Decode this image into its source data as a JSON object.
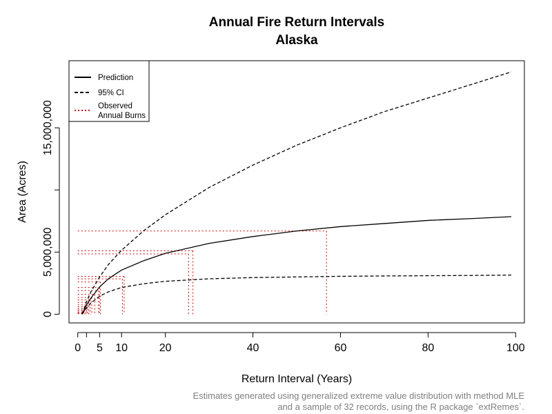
{
  "chart_data": {
    "type": "line",
    "title": "Annual Fire Return Intervals",
    "subtitle": "Alaska",
    "xlabel": "Return Interval (Years)",
    "ylabel": "Area (Acres)",
    "xlim": [
      -2,
      102
    ],
    "ylim": [
      -700000,
      20400000
    ],
    "x_ticks": [
      0,
      2,
      5,
      10,
      20,
      40,
      60,
      80,
      100
    ],
    "x_tick_labels": [
      "0",
      "",
      "5",
      "10",
      "20",
      "40",
      "60",
      "80",
      "100"
    ],
    "y_ticks": [
      0,
      5000000,
      10000000,
      15000000
    ],
    "y_tick_labels": [
      "0",
      "5,000,000",
      "",
      "15,000,000"
    ],
    "grid": false,
    "legend_position": "top-left",
    "series": [
      {
        "name": "Prediction",
        "line_style": "solid",
        "color": "#000000",
        "x": [
          1,
          2,
          3,
          5,
          7,
          10,
          15,
          20,
          30,
          40,
          50,
          60,
          70,
          80,
          90,
          99
        ],
        "y": [
          0,
          750000,
          1300000,
          2200000,
          2850000,
          3550000,
          4300000,
          4900000,
          5700000,
          6250000,
          6700000,
          7050000,
          7300000,
          7550000,
          7700000,
          7850000
        ]
      },
      {
        "name": "95% CI",
        "line_style": "dashed",
        "color": "#000000",
        "x": [
          1,
          2,
          3,
          5,
          7,
          10,
          15,
          20,
          30,
          40,
          50,
          60,
          70,
          80,
          90,
          99
        ],
        "y": [
          0,
          1000000,
          1800000,
          3000000,
          4000000,
          5150000,
          6700000,
          8000000,
          10200000,
          12000000,
          13600000,
          15000000,
          16300000,
          17400000,
          18500000,
          19500000
        ]
      },
      {
        "name": "95% CI lower",
        "line_style": "dashed",
        "color": "#000000",
        "x": [
          1,
          2,
          3,
          5,
          7,
          10,
          15,
          20,
          30,
          40,
          50,
          60,
          70,
          80,
          90,
          99
        ],
        "y": [
          0,
          500000,
          900000,
          1450000,
          1800000,
          2150000,
          2450000,
          2650000,
          2850000,
          2950000,
          3000000,
          3050000,
          3080000,
          3100000,
          3120000,
          3150000
        ]
      }
    ],
    "observed_burns": {
      "name": "Observed Annual Burns",
      "line_style": "dotted",
      "color": "#cc0000",
      "values": [
        6700000,
        5100000,
        4850000,
        3050000,
        2850000,
        2600000,
        2150000,
        1900000,
        1600000,
        1350000,
        1150000,
        950000,
        750000,
        600000,
        450000,
        350000,
        250000,
        150000,
        100000,
        50000
      ],
      "return_intervals": [
        56.8,
        26.3,
        25.3,
        10.6,
        10.2,
        5.2,
        5.0,
        4.7,
        3.9,
        3.2,
        2.8,
        2.5,
        2.2,
        2.0,
        1.8,
        1.6,
        1.4,
        1.2,
        1.1,
        1.0
      ]
    },
    "legend": [
      {
        "label": "Prediction",
        "style": "solid"
      },
      {
        "label": "95% CI",
        "style": "dashed"
      },
      {
        "label": "Observed\nAnnual Burns",
        "style": "dotted"
      }
    ]
  },
  "caption": {
    "line1": "Estimates generated using generalized extreme value distribution with method MLE",
    "line2": "and a sample of 32 records, using the R package `extRemes`."
  }
}
